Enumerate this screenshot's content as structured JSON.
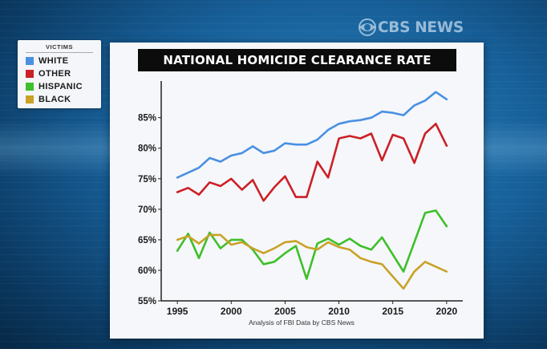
{
  "brand": {
    "logo_text": "CBS NEWS"
  },
  "legend": {
    "title": "VICTIMS",
    "items": [
      {
        "label": "WHITE",
        "color": "#4a90e2"
      },
      {
        "label": "OTHER",
        "color": "#cc2027"
      },
      {
        "label": "HISPANIC",
        "color": "#3fbf2a"
      },
      {
        "label": "BLACK",
        "color": "#c9a227"
      }
    ]
  },
  "chart_data": {
    "type": "line",
    "title": "NATIONAL HOMICIDE CLEARANCE RATE",
    "source_note": "Analysis of FBI Data by CBS News",
    "xlabel": "",
    "ylabel": "",
    "xlim": [
      1993.5,
      2021.5
    ],
    "ylim": [
      55,
      91
    ],
    "x_ticks": [
      1995,
      2000,
      2005,
      2010,
      2015,
      2020
    ],
    "x_tick_labels": [
      "1995",
      "2000",
      "2005",
      "2010",
      "2015",
      "2020"
    ],
    "y_ticks": [
      55,
      60,
      65,
      70,
      75,
      80,
      85
    ],
    "y_tick_labels": [
      "55%",
      "60%",
      "65%",
      "70%",
      "75%",
      "80%",
      "85%"
    ],
    "grid": false,
    "legend_position": "outside-left",
    "x": [
      1995,
      1996,
      1997,
      1998,
      1999,
      2000,
      2001,
      2002,
      2003,
      2004,
      2005,
      2006,
      2007,
      2008,
      2009,
      2010,
      2011,
      2012,
      2013,
      2014,
      2015,
      2016,
      2017,
      2018,
      2019,
      2020
    ],
    "series": [
      {
        "name": "WHITE",
        "color": "#4a90e2",
        "values": [
          75.2,
          76.0,
          76.8,
          78.4,
          77.8,
          78.8,
          79.2,
          80.3,
          79.2,
          79.6,
          80.8,
          80.6,
          80.6,
          81.4,
          83.0,
          84.0,
          84.4,
          84.6,
          85.0,
          86.0,
          85.8,
          85.4,
          87.0,
          87.8,
          89.2,
          88.0
        ]
      },
      {
        "name": "OTHER",
        "color": "#cc2027",
        "values": [
          72.8,
          73.5,
          72.4,
          74.4,
          73.8,
          75.0,
          73.2,
          74.8,
          71.4,
          73.6,
          75.4,
          72.0,
          72.0,
          77.8,
          75.2,
          81.6,
          82.0,
          81.6,
          82.4,
          78.0,
          82.2,
          81.6,
          77.6,
          82.4,
          84.0,
          80.4
        ]
      },
      {
        "name": "HISPANIC",
        "color": "#3fbf2a",
        "values": [
          63.2,
          66.0,
          62.0,
          66.2,
          63.6,
          65.0,
          65.0,
          63.4,
          61.0,
          61.4,
          62.8,
          64.0,
          58.6,
          64.4,
          65.2,
          64.2,
          65.2,
          64.0,
          63.4,
          65.4,
          62.6,
          59.8,
          64.6,
          69.4,
          69.8,
          67.2
        ]
      },
      {
        "name": "BLACK",
        "color": "#c9a227",
        "values": [
          65.0,
          65.6,
          64.4,
          65.8,
          65.8,
          64.2,
          64.6,
          63.6,
          62.8,
          63.6,
          64.6,
          64.8,
          63.8,
          63.4,
          64.6,
          63.8,
          63.4,
          62.0,
          61.4,
          61.0,
          59.0,
          57.0,
          59.8,
          61.4,
          60.6,
          59.8
        ]
      }
    ]
  }
}
